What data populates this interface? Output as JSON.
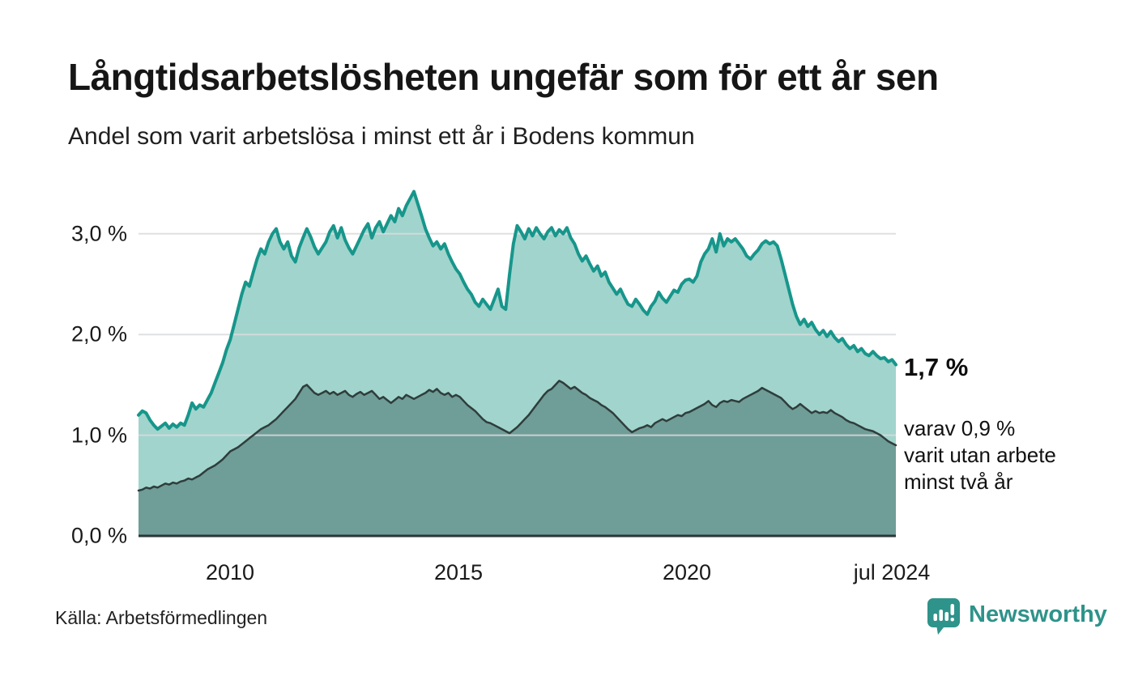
{
  "header": {
    "title": "Långtidsarbetslösheten ungefär som för ett år sen",
    "subtitle": "Andel som varit arbetslösa i minst ett år i Bodens kommun"
  },
  "annotations": {
    "value_label": "1,7 %",
    "sub_lines": [
      "varav 0,9 %",
      "varit utan arbete",
      "minst två år"
    ]
  },
  "footer": {
    "source": "Källa: Arbetsförmedlingen",
    "brand": "Newsworthy",
    "logo_icon": "speech-bubble-bar-chart-icon"
  },
  "colors": {
    "accent_teal": "#17968b",
    "light_fill": "#a1d4cc",
    "dark_fill": "#6f9d97",
    "dark_line": "#2e3d3c",
    "gridline": "#d9dbdd",
    "baseline": "#2c3537",
    "brand_teal": "#2e938a"
  },
  "chart_data": {
    "type": "area",
    "title": "Långtidsarbetslösheten ungefär som för ett år sen",
    "subtitle": "Andel som varit arbetslösa i minst ett år i Bodens kommun",
    "unit": "%",
    "x_domain": [
      2008.0,
      2024.583
    ],
    "x_ticks": [
      {
        "year": 2010,
        "label": "2010"
      },
      {
        "year": 2015,
        "label": "2015"
      },
      {
        "year": 2020,
        "label": "2020"
      },
      {
        "year": 2024.5,
        "label": "jul 2024"
      }
    ],
    "y_ticks": [
      {
        "value": 0,
        "label": "0,0 %"
      },
      {
        "value": 1,
        "label": "1,0 %"
      },
      {
        "value": 2,
        "label": "2,0 %"
      },
      {
        "value": 3,
        "label": "3,0 %"
      }
    ],
    "ylim": [
      0,
      3.5
    ],
    "grid": "horizontal",
    "gridline_color": "#d9dbdd",
    "baseline_color": "#2c3537",
    "series": [
      {
        "name": "Andel arbetslösa minst ett år",
        "line_color": "#17968b",
        "line_width": 4,
        "fill_color": "#a1d4cc",
        "end_value_label": "1,7 %",
        "values": [
          1.2,
          1.24,
          1.22,
          1.15,
          1.1,
          1.06,
          1.09,
          1.12,
          1.07,
          1.11,
          1.08,
          1.12,
          1.1,
          1.2,
          1.32,
          1.26,
          1.3,
          1.28,
          1.35,
          1.42,
          1.52,
          1.62,
          1.72,
          1.85,
          1.95,
          2.1,
          2.25,
          2.4,
          2.52,
          2.48,
          2.62,
          2.75,
          2.85,
          2.8,
          2.92,
          3.0,
          3.05,
          2.92,
          2.85,
          2.92,
          2.78,
          2.72,
          2.86,
          2.96,
          3.05,
          2.97,
          2.87,
          2.8,
          2.86,
          2.92,
          3.02,
          3.08,
          2.96,
          3.06,
          2.94,
          2.86,
          2.8,
          2.88,
          2.96,
          3.04,
          3.1,
          2.96,
          3.06,
          3.12,
          3.02,
          3.1,
          3.18,
          3.12,
          3.25,
          3.18,
          3.28,
          3.35,
          3.42,
          3.3,
          3.18,
          3.05,
          2.96,
          2.88,
          2.92,
          2.85,
          2.9,
          2.8,
          2.72,
          2.65,
          2.6,
          2.52,
          2.45,
          2.4,
          2.32,
          2.28,
          2.35,
          2.3,
          2.25,
          2.35,
          2.45,
          2.28,
          2.25,
          2.6,
          2.9,
          3.08,
          3.02,
          2.95,
          3.05,
          2.98,
          3.06,
          3.0,
          2.95,
          3.02,
          3.06,
          2.98,
          3.04,
          3.0,
          3.06,
          2.96,
          2.9,
          2.8,
          2.73,
          2.78,
          2.7,
          2.63,
          2.68,
          2.58,
          2.62,
          2.52,
          2.46,
          2.4,
          2.45,
          2.37,
          2.3,
          2.28,
          2.35,
          2.3,
          2.24,
          2.2,
          2.28,
          2.33,
          2.42,
          2.36,
          2.32,
          2.38,
          2.44,
          2.42,
          2.5,
          2.54,
          2.55,
          2.52,
          2.58,
          2.72,
          2.8,
          2.85,
          2.95,
          2.82,
          3.0,
          2.88,
          2.95,
          2.92,
          2.95,
          2.9,
          2.85,
          2.78,
          2.75,
          2.8,
          2.84,
          2.9,
          2.93,
          2.9,
          2.92,
          2.88,
          2.75,
          2.6,
          2.45,
          2.3,
          2.18,
          2.1,
          2.15,
          2.08,
          2.12,
          2.05,
          2.0,
          2.04,
          1.98,
          2.03,
          1.97,
          1.93,
          1.96,
          1.9,
          1.86,
          1.89,
          1.83,
          1.86,
          1.81,
          1.79,
          1.83,
          1.79,
          1.76,
          1.77,
          1.73,
          1.75,
          1.7
        ]
      },
      {
        "name": "varav utan arbete minst två år",
        "line_color": "#2e3d3c",
        "line_width": 2.5,
        "fill_color": "#6f9d97",
        "end_value_label": "0,9 %",
        "values": [
          0.45,
          0.46,
          0.48,
          0.47,
          0.49,
          0.48,
          0.5,
          0.52,
          0.51,
          0.53,
          0.52,
          0.54,
          0.55,
          0.57,
          0.56,
          0.58,
          0.6,
          0.63,
          0.66,
          0.68,
          0.7,
          0.73,
          0.76,
          0.8,
          0.84,
          0.86,
          0.88,
          0.91,
          0.94,
          0.97,
          1.0,
          1.03,
          1.06,
          1.08,
          1.1,
          1.13,
          1.16,
          1.2,
          1.24,
          1.28,
          1.32,
          1.36,
          1.42,
          1.48,
          1.5,
          1.46,
          1.42,
          1.4,
          1.42,
          1.44,
          1.41,
          1.43,
          1.4,
          1.42,
          1.44,
          1.4,
          1.38,
          1.41,
          1.43,
          1.4,
          1.42,
          1.44,
          1.4,
          1.36,
          1.38,
          1.35,
          1.32,
          1.35,
          1.38,
          1.36,
          1.4,
          1.38,
          1.36,
          1.38,
          1.4,
          1.42,
          1.45,
          1.43,
          1.46,
          1.42,
          1.4,
          1.42,
          1.38,
          1.4,
          1.38,
          1.34,
          1.3,
          1.27,
          1.24,
          1.2,
          1.16,
          1.13,
          1.12,
          1.1,
          1.08,
          1.06,
          1.04,
          1.02,
          1.05,
          1.08,
          1.12,
          1.16,
          1.2,
          1.25,
          1.3,
          1.35,
          1.4,
          1.44,
          1.46,
          1.5,
          1.54,
          1.52,
          1.49,
          1.46,
          1.48,
          1.45,
          1.42,
          1.4,
          1.37,
          1.35,
          1.33,
          1.3,
          1.28,
          1.25,
          1.22,
          1.18,
          1.14,
          1.1,
          1.06,
          1.03,
          1.05,
          1.07,
          1.08,
          1.1,
          1.08,
          1.12,
          1.14,
          1.16,
          1.14,
          1.16,
          1.18,
          1.2,
          1.19,
          1.22,
          1.23,
          1.25,
          1.27,
          1.29,
          1.31,
          1.34,
          1.3,
          1.28,
          1.32,
          1.34,
          1.33,
          1.35,
          1.34,
          1.33,
          1.36,
          1.38,
          1.4,
          1.42,
          1.44,
          1.47,
          1.45,
          1.43,
          1.41,
          1.39,
          1.37,
          1.33,
          1.29,
          1.26,
          1.28,
          1.31,
          1.28,
          1.25,
          1.22,
          1.24,
          1.22,
          1.23,
          1.22,
          1.25,
          1.22,
          1.2,
          1.18,
          1.15,
          1.13,
          1.12,
          1.1,
          1.08,
          1.06,
          1.05,
          1.04,
          1.02,
          1.0,
          0.97,
          0.94,
          0.92,
          0.9
        ]
      }
    ]
  }
}
